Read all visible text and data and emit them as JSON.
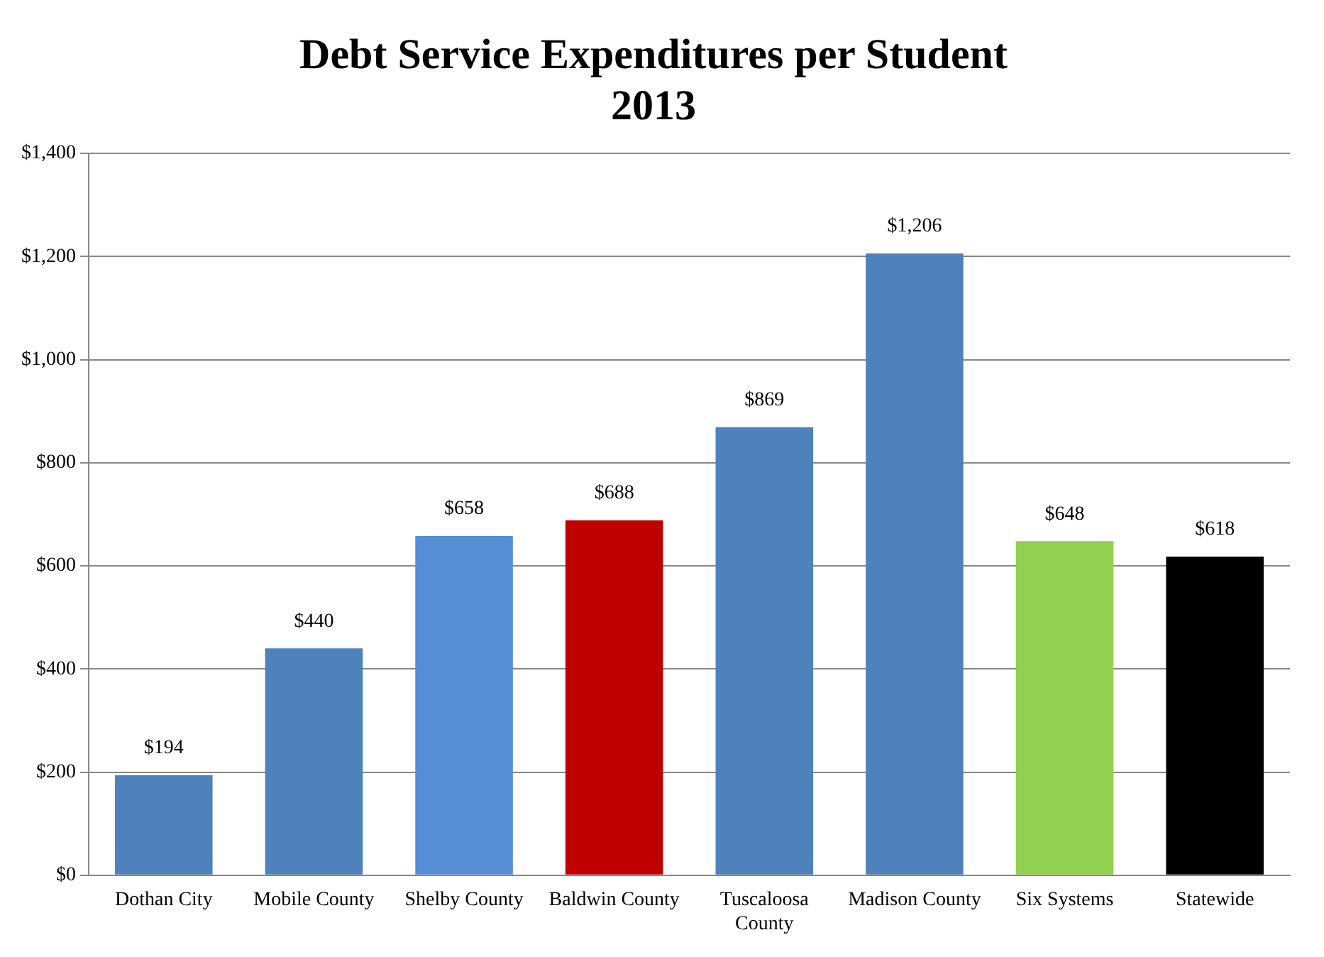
{
  "chart_data": {
    "type": "bar",
    "title": "Debt Service Expenditures per Student",
    "subtitle": "2013",
    "categories": [
      "Dothan City",
      "Mobile County",
      "Shelby County",
      "Baldwin County",
      "Tuscaloosa County",
      "Madison County",
      "Six Systems",
      "Statewide"
    ],
    "values": [
      194,
      440,
      658,
      688,
      869,
      1206,
      648,
      618
    ],
    "colors": [
      "#4f81bd",
      "#4f81bd",
      "#558ed5",
      "#c00000",
      "#4f81bd",
      "#4f81bd",
      "#92d050",
      "#000000"
    ],
    "value_labels": [
      "$194",
      "$440",
      "$658",
      "$688",
      "$869",
      "$1,206",
      "$648",
      "$618"
    ],
    "ylim": [
      0,
      1400
    ],
    "yticks": [
      {
        "value": 0,
        "label": "$0"
      },
      {
        "value": 200,
        "label": "$200"
      },
      {
        "value": 400,
        "label": "$400"
      },
      {
        "value": 600,
        "label": "$600"
      },
      {
        "value": 800,
        "label": "$800"
      },
      {
        "value": 1000,
        "label": "$1,000"
      },
      {
        "value": 1200,
        "label": "$1,200"
      },
      {
        "value": 1400,
        "label": "$1,400"
      }
    ],
    "grid": "y",
    "legend": false
  }
}
